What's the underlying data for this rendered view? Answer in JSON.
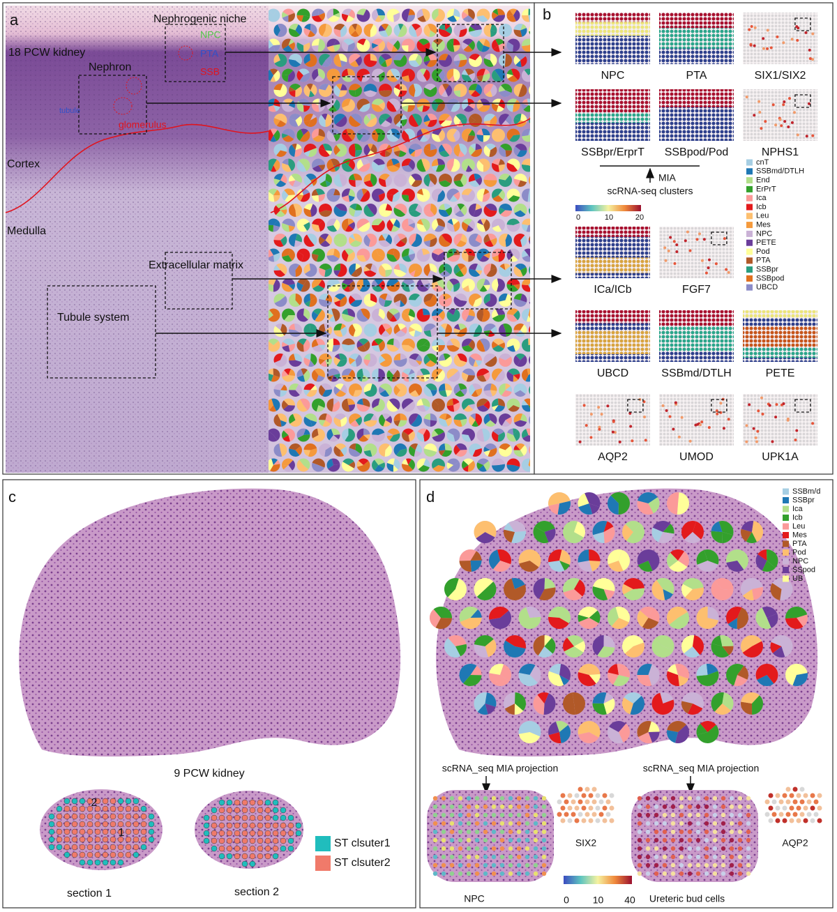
{
  "panel_a": {
    "label": "a",
    "title": "18 PCW kidney",
    "nephrogenic_niche": "Nephrogenic niche",
    "npc": "NPC",
    "pta": "PTA",
    "ssb": "SSB",
    "nephron": "Nephron",
    "tubule": "tubule",
    "glomerulus": "glomerulus",
    "cortex": "Cortex",
    "medulla": "Medulla",
    "extracellular_matrix": "Extracellular matrix",
    "tubule_system": "Tubule system"
  },
  "panel_b": {
    "label": "b",
    "thumbnails": [
      {
        "label": "NPC"
      },
      {
        "label": "PTA"
      },
      {
        "label": "SIX1/SIX2"
      },
      {
        "label": "SSBpr/ErprT"
      },
      {
        "label": "SSBpod/Pod"
      },
      {
        "label": "NPHS1"
      },
      {
        "label": "ICa/ICb"
      },
      {
        "label": "FGF7"
      },
      {
        "label": "UBCD"
      },
      {
        "label": "SSBmd/DTLH"
      },
      {
        "label": "PETE"
      },
      {
        "label": "AQP2"
      },
      {
        "label": "UMOD"
      },
      {
        "label": "UPK1A"
      }
    ],
    "mia": "MIA",
    "scrna_clusters": "scRNA-seq clusters",
    "colorbar_ticks": [
      0,
      10,
      20
    ],
    "legend": [
      {
        "name": "cnT",
        "color": "#a6cee3"
      },
      {
        "name": "SSBmd/DTLH",
        "color": "#1f78b4"
      },
      {
        "name": "End",
        "color": "#b2df8a"
      },
      {
        "name": "ErPrT",
        "color": "#33a02c"
      },
      {
        "name": "Ica",
        "color": "#fb9a99"
      },
      {
        "name": "Icb",
        "color": "#e31a1c"
      },
      {
        "name": "Leu",
        "color": "#fdbf6f"
      },
      {
        "name": "Mes",
        "color": "#f59a3c"
      },
      {
        "name": "NPC",
        "color": "#cab2d6"
      },
      {
        "name": "PETE",
        "color": "#6a3d9a"
      },
      {
        "name": "Pod",
        "color": "#ffff99"
      },
      {
        "name": "PTA",
        "color": "#b15928"
      },
      {
        "name": "SSBpr",
        "color": "#2a9d7f"
      },
      {
        "name": "SSBpod",
        "color": "#e0701f"
      },
      {
        "name": "UBCD",
        "color": "#8c8cc8"
      }
    ]
  },
  "panel_c": {
    "label": "c",
    "title": "9 PCW kidney",
    "section_1": "section 1",
    "section_2": "section 2",
    "marker_1": "1",
    "marker_2": "2",
    "legend": [
      {
        "name": "ST clsuter1",
        "color": "#20bdbd"
      },
      {
        "name": "ST clsuter2",
        "color": "#f07a6a"
      }
    ]
  },
  "panel_d": {
    "label": "d",
    "legend": [
      {
        "name": "SSBm/d",
        "color": "#a6cee3"
      },
      {
        "name": "SSBpr",
        "color": "#1f78b4"
      },
      {
        "name": "Ica",
        "color": "#b2df8a"
      },
      {
        "name": "Icb",
        "color": "#33a02c"
      },
      {
        "name": "Leu",
        "color": "#fb9a99"
      },
      {
        "name": "Mes",
        "color": "#e31a1c"
      },
      {
        "name": "PTA",
        "color": "#b15928"
      },
      {
        "name": "Pod",
        "color": "#fdbf6f"
      },
      {
        "name": "NPC",
        "color": "#cab2d6"
      },
      {
        "name": "SSpod",
        "color": "#6a3d9a"
      },
      {
        "name": "UB",
        "color": "#ffff99"
      }
    ],
    "projection_left": "scRNA_seq MIA projection",
    "projection_right": "scRNA_seq MIA projection",
    "npc": "NPC",
    "six2": "SIX2",
    "aqp2": "AQP2",
    "ureteric": "Ureteric bud cells",
    "colorbar_ticks": [
      0,
      10,
      40
    ]
  }
}
